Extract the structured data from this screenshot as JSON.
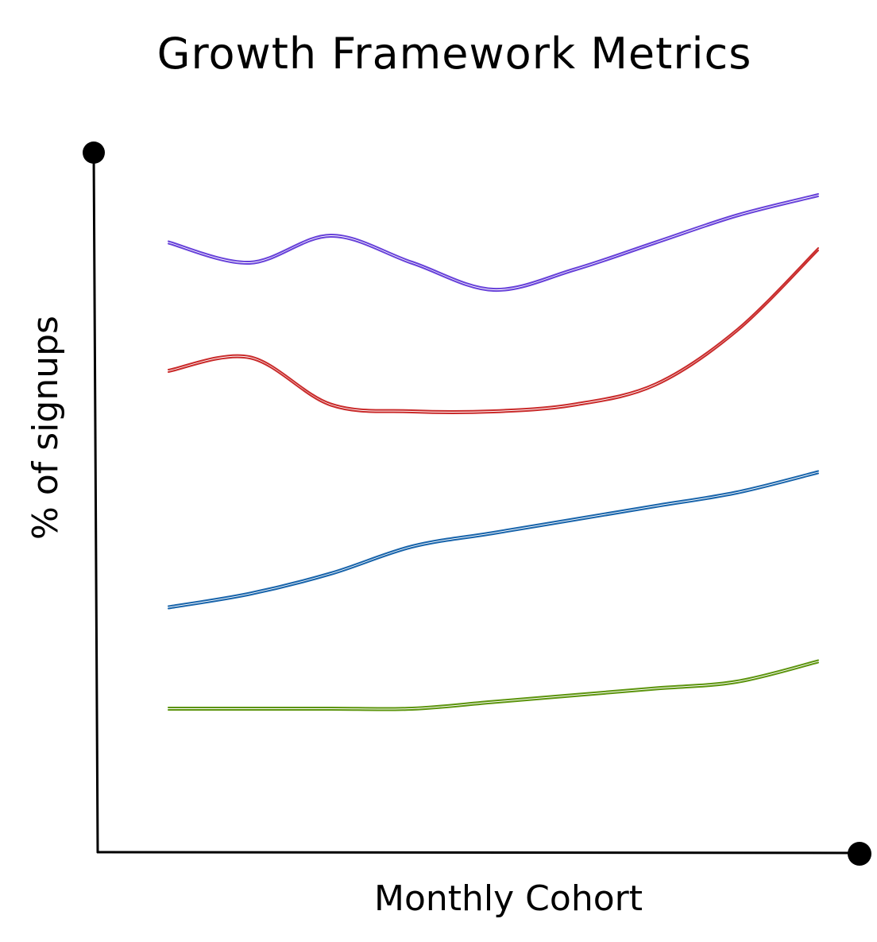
{
  "chart_data": {
    "type": "line",
    "title": "Growth Framework Metrics",
    "xlabel": "Monthly Cohort",
    "ylabel": "% of signups",
    "x": [
      0,
      1,
      2,
      3,
      4,
      5,
      6,
      7,
      8
    ],
    "ylim": [
      0,
      100
    ],
    "grid": false,
    "legend": "none",
    "series": [
      {
        "color": "#6741d9",
        "values": [
          89,
          86,
          90,
          86,
          82,
          85,
          89,
          93,
          96
        ]
      },
      {
        "color": "#c92a2a",
        "values": [
          70,
          72,
          65,
          64,
          64,
          65,
          68,
          76,
          88
        ]
      },
      {
        "color": "#1864ab",
        "values": [
          35,
          37,
          40,
          44,
          46,
          48,
          50,
          52,
          55
        ]
      },
      {
        "color": "#5c940d",
        "values": [
          20,
          20,
          20,
          20,
          21,
          22,
          23,
          24,
          27
        ]
      }
    ]
  }
}
